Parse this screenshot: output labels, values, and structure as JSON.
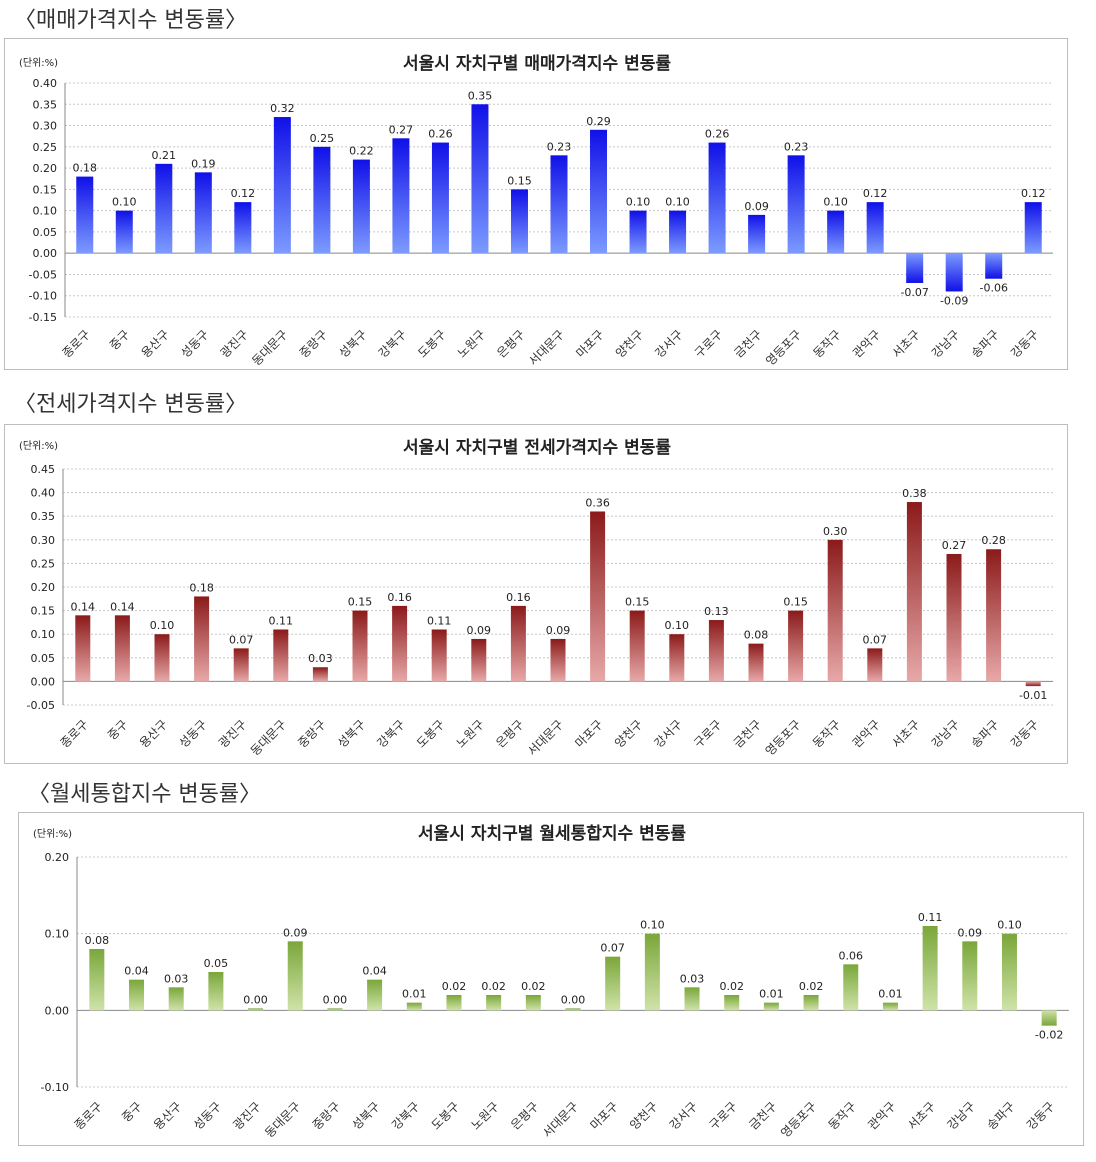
{
  "sections": [
    {
      "title": "〈매매가격지수 변동률〉"
    },
    {
      "title": "〈전세가격지수 변동률〉"
    },
    {
      "title": "〈월세통합지수 변동률〉"
    }
  ],
  "chart_data": [
    {
      "type": "bar",
      "title": "서울시 자치구별 매매가격지수 변동률",
      "unit": "(단위:%)",
      "categories": [
        "종로구",
        "중구",
        "용산구",
        "성동구",
        "광진구",
        "동대문구",
        "중랑구",
        "성북구",
        "강북구",
        "도봉구",
        "노원구",
        "은평구",
        "서대문구",
        "마포구",
        "양천구",
        "강서구",
        "구로구",
        "금천구",
        "영등포구",
        "동작구",
        "관악구",
        "서초구",
        "강남구",
        "송파구",
        "강동구"
      ],
      "values": [
        0.18,
        0.1,
        0.21,
        0.19,
        0.12,
        0.32,
        0.25,
        0.22,
        0.27,
        0.26,
        0.35,
        0.15,
        0.23,
        0.29,
        0.1,
        0.1,
        0.26,
        0.09,
        0.23,
        0.1,
        0.12,
        -0.07,
        -0.09,
        -0.06,
        0.12
      ],
      "data_labels": [
        "0.18",
        "0.10",
        "0.21",
        "0.19",
        "0.12",
        "0.32",
        "0.25",
        "0.22",
        "0.27",
        "0.26",
        "0.35",
        "0.15",
        "0.23",
        "0.29",
        "0.10",
        "0.10",
        "0.26",
        "0.09",
        "0.23",
        "0.10",
        "0.12",
        "-0.07",
        "-0.09",
        "-0.06",
        "0.12"
      ],
      "ylim": [
        -0.15,
        0.4
      ],
      "yticks": [
        0.4,
        0.35,
        0.3,
        0.25,
        0.2,
        0.15,
        0.1,
        0.05,
        0.0,
        -0.05,
        -0.1,
        -0.15
      ],
      "ytick_labels": [
        "0.40",
        "0.35",
        "0.30",
        "0.25",
        "0.20",
        "0.15",
        "0.10",
        "0.05",
        "0.00",
        "-0.05",
        "-0.10",
        "-0.15"
      ],
      "grid": true,
      "colors": {
        "top": "#1010e8",
        "bottom": "#7c9bff"
      }
    },
    {
      "type": "bar",
      "title": "서울시 자치구별 전세가격지수 변동률",
      "unit": "(단위:%)",
      "categories": [
        "종로구",
        "중구",
        "용산구",
        "성동구",
        "광진구",
        "동대문구",
        "중랑구",
        "성북구",
        "강북구",
        "도봉구",
        "노원구",
        "은평구",
        "서대문구",
        "마포구",
        "양천구",
        "강서구",
        "구로구",
        "금천구",
        "영등포구",
        "동작구",
        "관악구",
        "서초구",
        "강남구",
        "송파구",
        "강동구"
      ],
      "values": [
        0.14,
        0.14,
        0.1,
        0.18,
        0.07,
        0.11,
        0.03,
        0.15,
        0.16,
        0.11,
        0.09,
        0.16,
        0.09,
        0.36,
        0.15,
        0.1,
        0.13,
        0.08,
        0.15,
        0.3,
        0.07,
        0.38,
        0.27,
        0.28,
        -0.01
      ],
      "data_labels": [
        "0.14",
        "0.14",
        "0.10",
        "0.18",
        "0.07",
        "0.11",
        "0.03",
        "0.15",
        "0.16",
        "0.11",
        "0.09",
        "0.16",
        "0.09",
        "0.36",
        "0.15",
        "0.10",
        "0.13",
        "0.08",
        "0.15",
        "0.30",
        "0.07",
        "0.38",
        "0.27",
        "0.28",
        "-0.01"
      ],
      "ylim": [
        -0.05,
        0.45
      ],
      "yticks": [
        0.45,
        0.4,
        0.35,
        0.3,
        0.25,
        0.2,
        0.15,
        0.1,
        0.05,
        0.0,
        -0.05
      ],
      "ytick_labels": [
        "0.45",
        "0.40",
        "0.35",
        "0.30",
        "0.25",
        "0.20",
        "0.15",
        "0.10",
        "0.05",
        "0.00",
        "-0.05"
      ],
      "grid": true,
      "colors": {
        "top": "#8b1a1a",
        "bottom": "#e8a8a8"
      }
    },
    {
      "type": "bar",
      "title": "서울시 자치구별 월세통합지수 변동률",
      "unit": "(단위:%)",
      "categories": [
        "종로구",
        "중구",
        "용산구",
        "성동구",
        "광진구",
        "동대문구",
        "중랑구",
        "성북구",
        "강북구",
        "도봉구",
        "노원구",
        "은평구",
        "서대문구",
        "마포구",
        "양천구",
        "강서구",
        "구로구",
        "금천구",
        "영등포구",
        "동작구",
        "관악구",
        "서초구",
        "강남구",
        "송파구",
        "강동구"
      ],
      "values": [
        0.08,
        0.04,
        0.03,
        0.05,
        0.0,
        0.09,
        0.0,
        0.04,
        0.01,
        0.02,
        0.02,
        0.02,
        0.0,
        0.07,
        0.1,
        0.03,
        0.02,
        0.01,
        0.02,
        0.06,
        0.01,
        0.11,
        0.09,
        0.1,
        -0.02
      ],
      "data_labels": [
        "0.08",
        "0.04",
        "0.03",
        "0.05",
        "0.00",
        "0.09",
        "0.00",
        "0.04",
        "0.01",
        "0.02",
        "0.02",
        "0.02",
        "0.00",
        "0.07",
        "0.10",
        "0.03",
        "0.02",
        "0.01",
        "0.02",
        "0.06",
        "0.01",
        "0.11",
        "0.09",
        "0.10",
        "-0.02"
      ],
      "ylim": [
        -0.1,
        0.2
      ],
      "yticks": [
        0.2,
        0.1,
        0.0,
        -0.1
      ],
      "ytick_labels": [
        "0.20",
        "0.10",
        "0.00",
        "-0.10"
      ],
      "grid": true,
      "colors": {
        "top": "#7aa63a",
        "bottom": "#cfe3a8"
      }
    }
  ]
}
